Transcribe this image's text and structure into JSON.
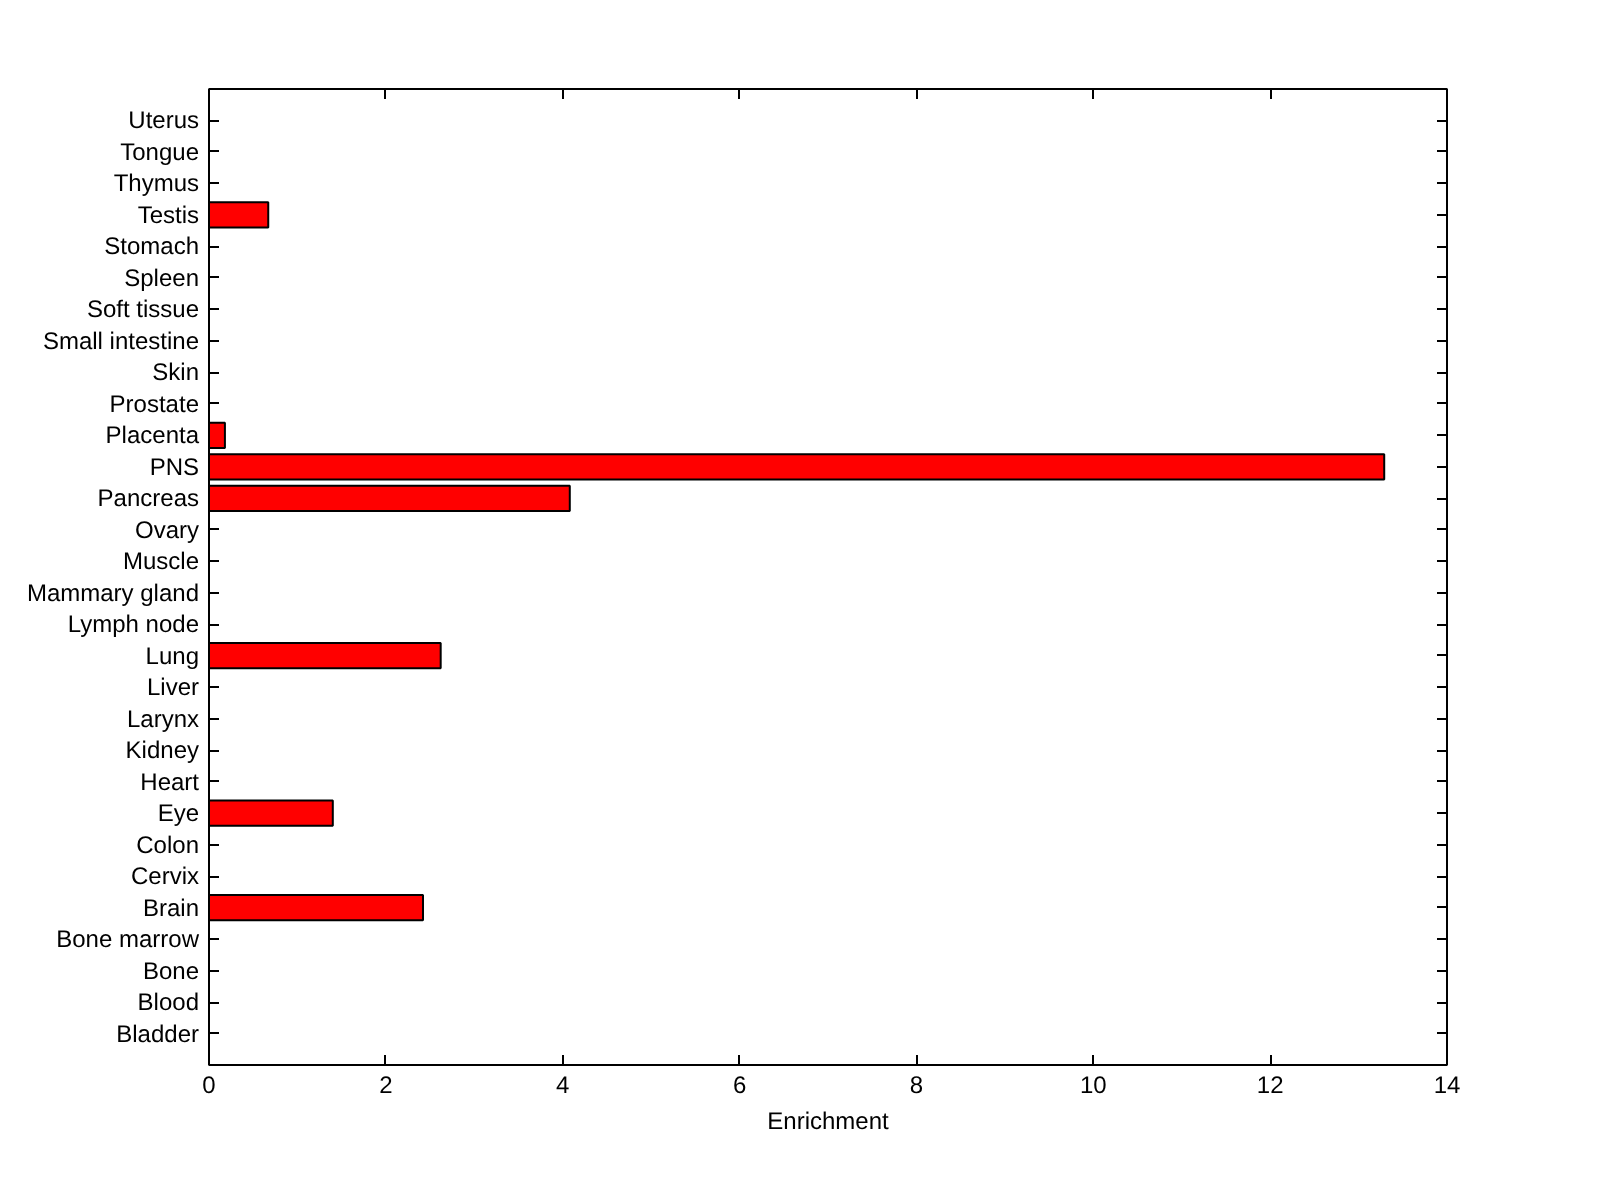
{
  "chart_data": {
    "type": "bar",
    "orientation": "horizontal",
    "xlabel": "Enrichment",
    "categories": [
      "Uterus",
      "Tongue",
      "Thymus",
      "Testis",
      "Stomach",
      "Spleen",
      "Soft tissue",
      "Small intestine",
      "Skin",
      "Prostate",
      "Placenta",
      "PNS",
      "Pancreas",
      "Ovary",
      "Muscle",
      "Mammary gland",
      "Lymph node",
      "Lung",
      "Liver",
      "Larynx",
      "Kidney",
      "Heart",
      "Eye",
      "Colon",
      "Cervix",
      "Brain",
      "Bone marrow",
      "Bone",
      "Blood",
      "Bladder"
    ],
    "values": [
      0,
      0,
      0,
      0.67,
      0,
      0,
      0,
      0,
      0,
      0,
      0.18,
      13.29,
      4.08,
      0,
      0,
      0,
      0,
      2.62,
      0,
      0,
      0,
      0,
      1.4,
      0,
      0,
      2.42,
      0,
      0,
      0,
      0
    ],
    "color": "#ff0000",
    "xlim": [
      0,
      14
    ],
    "xticks": [
      0,
      2,
      4,
      6,
      8,
      10,
      12,
      14
    ],
    "grid": false
  }
}
